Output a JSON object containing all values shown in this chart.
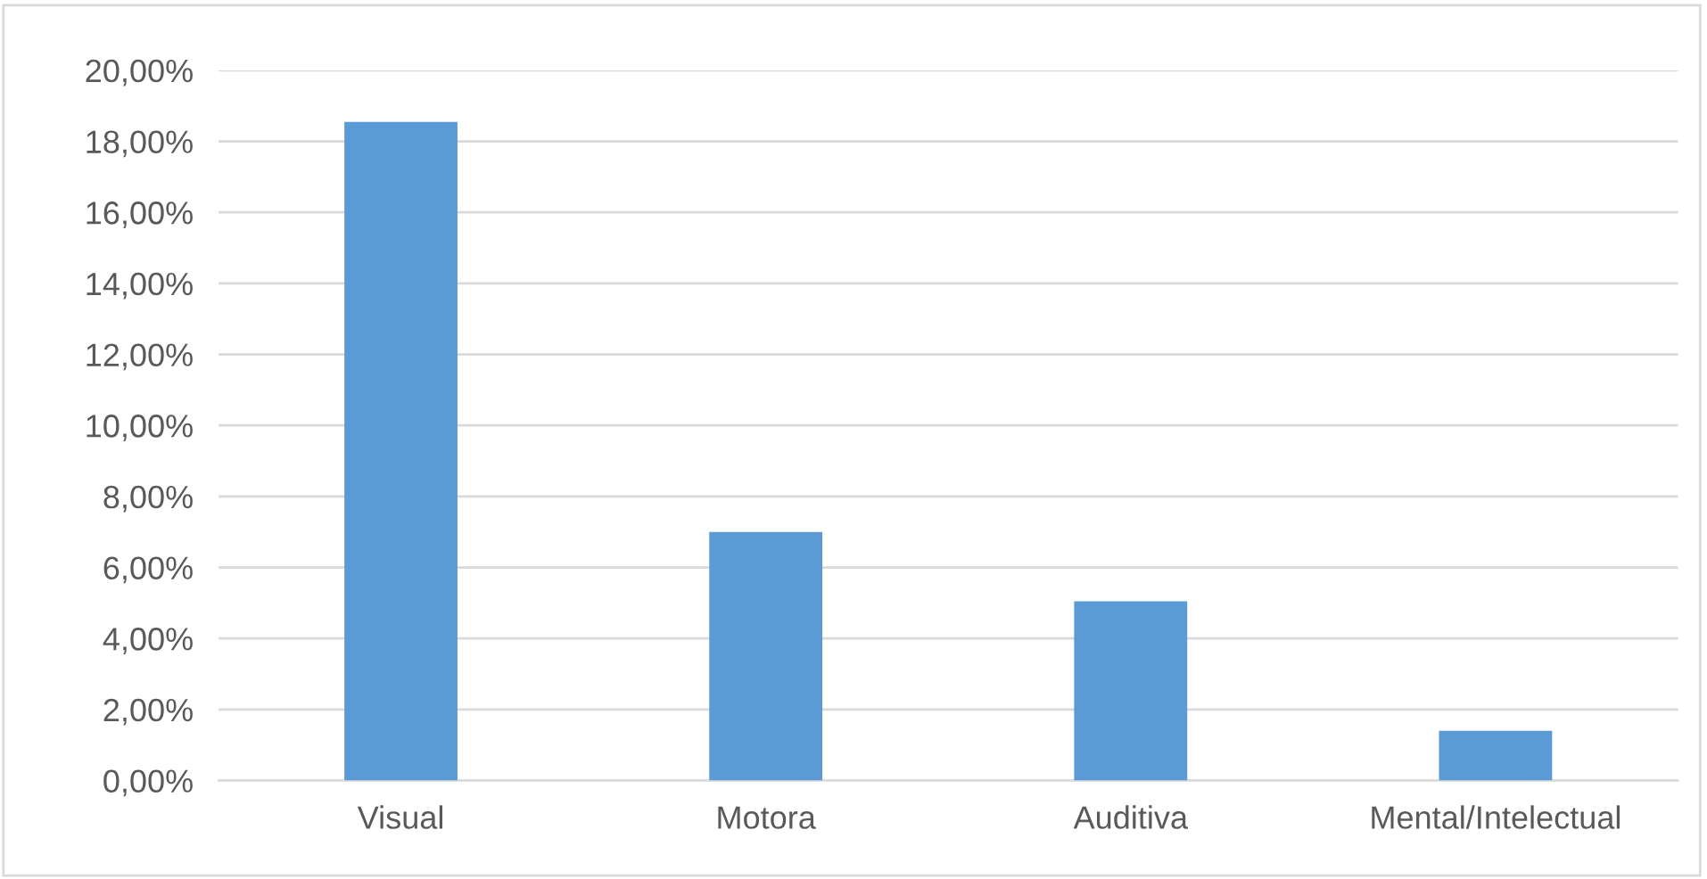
{
  "chart_data": {
    "type": "bar",
    "categories": [
      "Visual",
      "Motora",
      "Auditiva",
      "Mental/Intelectual"
    ],
    "values": [
      18.55,
      7.0,
      5.05,
      1.4
    ],
    "color": "#5b9bd5",
    "ylim": [
      0,
      20
    ],
    "yticks": [
      {
        "value": 0,
        "label": "0,00%"
      },
      {
        "value": 2,
        "label": "2,00%"
      },
      {
        "value": 4,
        "label": "4,00%"
      },
      {
        "value": 6,
        "label": "6,00%"
      },
      {
        "value": 8,
        "label": "8,00%"
      },
      {
        "value": 10,
        "label": "10,00%"
      },
      {
        "value": 12,
        "label": "12,00%"
      },
      {
        "value": 14,
        "label": "14,00%"
      },
      {
        "value": 16,
        "label": "16,00%"
      },
      {
        "value": 18,
        "label": "18,00%"
      },
      {
        "value": 20,
        "label": "20,00%"
      }
    ],
    "grid": "y",
    "legend": false
  }
}
